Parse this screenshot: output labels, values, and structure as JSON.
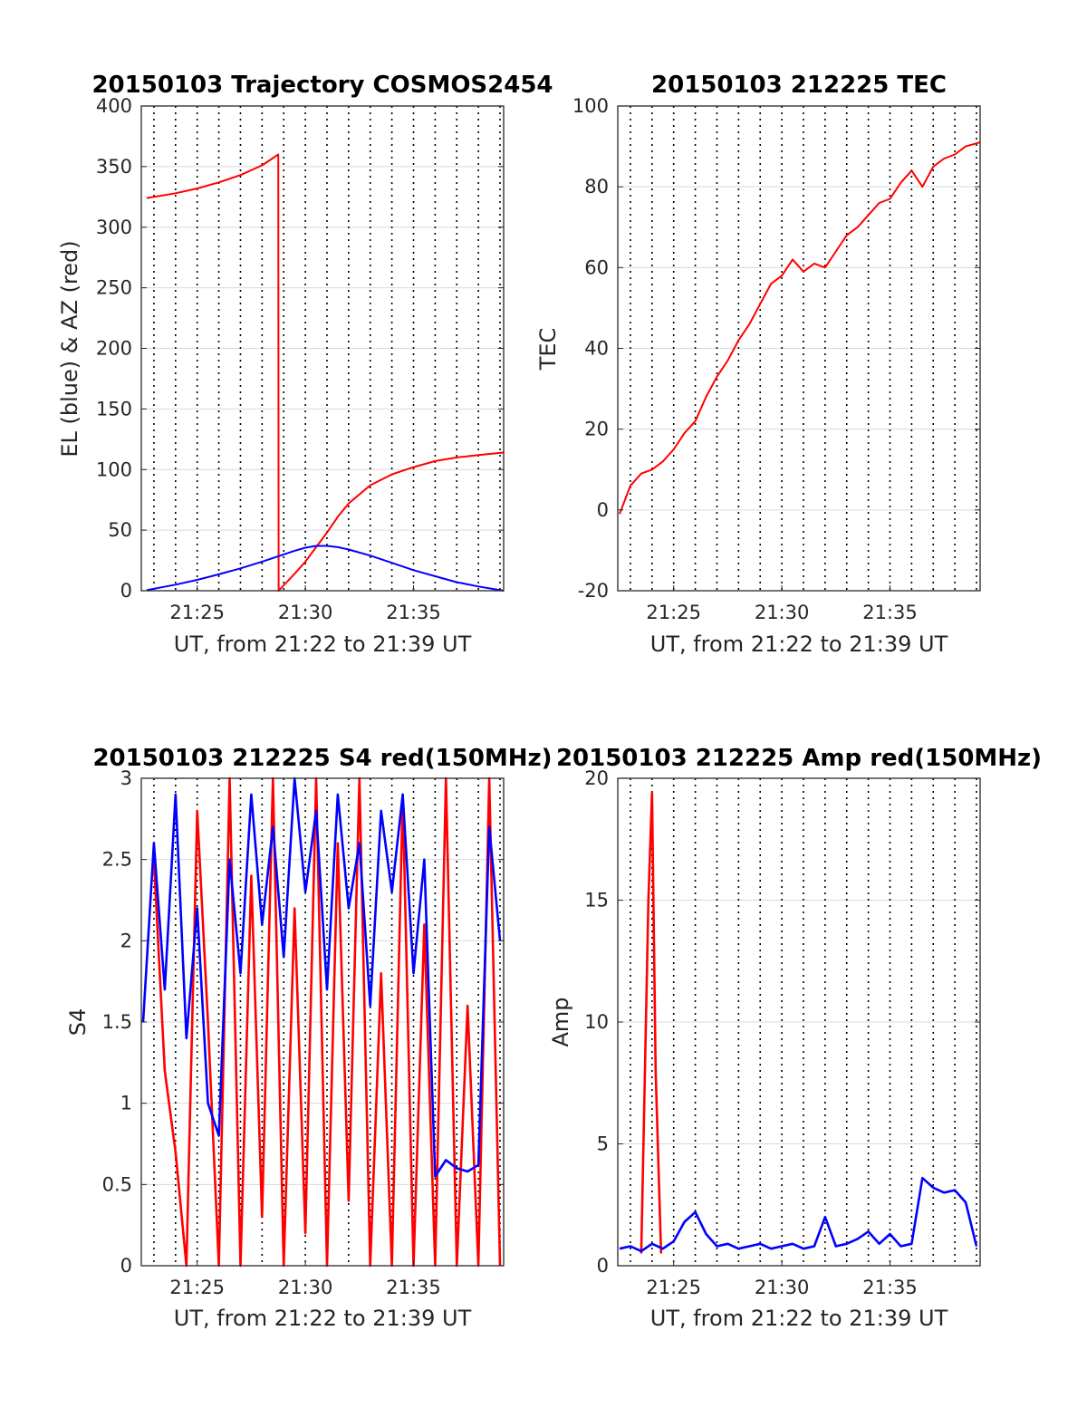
{
  "colors": {
    "red": "#ff0000",
    "blue": "#0000ff",
    "grid": "#d9d9d9",
    "axis": "#262626"
  },
  "chart_data": [
    {
      "type": "line",
      "title": "20150103 Trajectory COSMOS2454",
      "xlabel": "UT, from 21:22 to 21:39 UT",
      "ylabel": "EL (blue) & AZ (red)",
      "xlim": [
        "21:22:25",
        "21:39:10"
      ],
      "ylim": [
        0,
        400
      ],
      "xticks": [
        "21:25",
        "21:30",
        "21:35"
      ],
      "yticks": [
        0,
        50,
        100,
        150,
        200,
        250,
        300,
        350,
        400
      ],
      "grid": "on",
      "series": [
        {
          "color": "red",
          "x": [
            "21:22:40",
            "21:24:00",
            "21:25:00",
            "21:26:00",
            "21:27:00",
            "21:28:00",
            "21:28:45",
            "21:28:46",
            "21:29:30",
            "21:30:00",
            "21:30:30",
            "21:31:00",
            "21:31:30",
            "21:32:00",
            "21:33:00",
            "21:34:00",
            "21:35:00",
            "21:36:00",
            "21:37:00",
            "21:38:00",
            "21:39:10"
          ],
          "y": [
            324,
            328,
            332,
            337,
            343,
            351,
            360,
            0,
            14,
            24,
            36,
            48,
            61,
            72,
            87,
            96,
            102,
            107,
            110,
            112,
            114
          ]
        },
        {
          "color": "blue",
          "x": [
            "21:22:40",
            "21:24:00",
            "21:25:00",
            "21:26:00",
            "21:27:00",
            "21:28:00",
            "21:29:00",
            "21:29:30",
            "21:30:00",
            "21:30:30",
            "21:31:00",
            "21:31:30",
            "21:32:00",
            "21:33:00",
            "21:34:00",
            "21:35:00",
            "21:36:00",
            "21:37:00",
            "21:38:00",
            "21:39:10"
          ],
          "y": [
            0.5,
            5,
            9,
            13.5,
            18.5,
            24,
            30,
            33,
            35.5,
            37,
            37,
            36,
            34,
            29,
            23,
            17,
            12,
            7,
            3.5,
            0
          ]
        }
      ]
    },
    {
      "type": "line",
      "title": "20150103 212225 TEC",
      "xlabel": "UT, from 21:22 to 21:39 UT",
      "ylabel": "TEC",
      "xlim": [
        "21:22:25",
        "21:39:10"
      ],
      "ylim": [
        -20,
        100
      ],
      "xticks": [
        "21:25",
        "21:30",
        "21:35"
      ],
      "yticks": [
        -20,
        0,
        20,
        40,
        60,
        80,
        100
      ],
      "grid": "on",
      "series": [
        {
          "color": "red",
          "x": [
            "21:22:30",
            "21:23:00",
            "21:23:30",
            "21:24:00",
            "21:24:30",
            "21:25:00",
            "21:25:30",
            "21:26:00",
            "21:26:30",
            "21:27:00",
            "21:27:30",
            "21:28:00",
            "21:28:30",
            "21:29:00",
            "21:29:30",
            "21:30:00",
            "21:30:30",
            "21:31:00",
            "21:31:30",
            "21:32:00",
            "21:32:30",
            "21:33:00",
            "21:33:30",
            "21:34:00",
            "21:34:30",
            "21:35:00",
            "21:35:30",
            "21:36:00",
            "21:36:30",
            "21:37:00",
            "21:37:30",
            "21:38:00",
            "21:38:30",
            "21:39:10"
          ],
          "y": [
            -1,
            6,
            9,
            10,
            12,
            15,
            19,
            22,
            28,
            33,
            37,
            42,
            46,
            51,
            56,
            58,
            62,
            59,
            61,
            60,
            64,
            68,
            70,
            73,
            76,
            77,
            81,
            84,
            80,
            85,
            87,
            88,
            90,
            91
          ]
        }
      ]
    },
    {
      "type": "line",
      "title": "20150103 212225 S4 red(150MHz)",
      "xlabel": "UT, from 21:22 to 21:39 UT",
      "ylabel": "S4",
      "xlim": [
        "21:22:25",
        "21:39:10"
      ],
      "ylim": [
        0,
        3
      ],
      "xticks": [
        "21:25",
        "21:30",
        "21:35"
      ],
      "yticks": [
        0,
        0.5,
        1,
        1.5,
        2,
        2.5,
        3
      ],
      "grid": "on",
      "series": [
        {
          "color": "red",
          "x": [
            "21:23:00",
            "21:23:30",
            "21:24:00",
            "21:24:30",
            "21:25:00",
            "21:25:30",
            "21:26:00",
            "21:26:30",
            "21:27:00",
            "21:27:30",
            "21:28:00",
            "21:28:30",
            "21:29:00",
            "21:29:30",
            "21:30:00",
            "21:30:30",
            "21:31:00",
            "21:31:30",
            "21:32:00",
            "21:32:30",
            "21:33:00",
            "21:33:30",
            "21:34:00",
            "21:34:30",
            "21:35:00",
            "21:35:30",
            "21:36:00",
            "21:36:30",
            "21:37:00",
            "21:37:30",
            "21:38:00",
            "21:38:30",
            "21:39:00"
          ],
          "y": [
            2.5,
            1.2,
            0.7,
            0,
            2.8,
            1.5,
            0,
            3,
            0,
            2.4,
            0.3,
            3,
            0,
            2.2,
            0.2,
            3,
            0,
            2.6,
            0.4,
            3,
            0,
            1.8,
            0,
            2.9,
            0,
            2.1,
            0,
            3,
            0,
            1.6,
            0,
            3,
            0
          ]
        },
        {
          "color": "blue",
          "x": [
            "21:22:30",
            "21:23:00",
            "21:23:30",
            "21:24:00",
            "21:24:30",
            "21:25:00",
            "21:25:30",
            "21:26:00",
            "21:26:30",
            "21:27:00",
            "21:27:30",
            "21:28:00",
            "21:28:30",
            "21:29:00",
            "21:29:30",
            "21:30:00",
            "21:30:30",
            "21:31:00",
            "21:31:30",
            "21:32:00",
            "21:32:30",
            "21:33:00",
            "21:33:30",
            "21:34:00",
            "21:34:30",
            "21:35:00",
            "21:35:30",
            "21:36:00",
            "21:36:30",
            "21:37:00",
            "21:37:30",
            "21:38:00",
            "21:38:30",
            "21:39:00"
          ],
          "y": [
            1.5,
            2.6,
            1.7,
            2.9,
            1.4,
            2.2,
            1.0,
            0.8,
            2.5,
            1.8,
            2.9,
            2.1,
            2.7,
            1.9,
            3,
            2.3,
            2.8,
            1.7,
            2.9,
            2.2,
            2.6,
            1.6,
            2.8,
            2.3,
            2.9,
            1.8,
            2.5,
            0.55,
            0.65,
            0.6,
            0.58,
            0.62,
            2.7,
            2.0
          ]
        }
      ]
    },
    {
      "type": "line",
      "title": "20150103 212225 Amp red(150MHz)",
      "xlabel": "UT, from 21:22 to 21:39 UT",
      "ylabel": "Amp",
      "xlim": [
        "21:22:25",
        "21:39:10"
      ],
      "ylim": [
        0,
        20
      ],
      "xticks": [
        "21:25",
        "21:30",
        "21:35"
      ],
      "yticks": [
        0,
        5,
        10,
        15,
        20
      ],
      "grid": "on",
      "series": [
        {
          "color": "red",
          "x": [
            "21:23:30",
            "21:23:50",
            "21:24:00",
            "21:24:10",
            "21:24:25"
          ],
          "y": [
            0.5,
            15,
            19.4,
            8,
            0.5
          ]
        },
        {
          "color": "blue",
          "x": [
            "21:22:30",
            "21:23:00",
            "21:23:30",
            "21:24:00",
            "21:24:30",
            "21:25:00",
            "21:25:30",
            "21:26:00",
            "21:26:30",
            "21:27:00",
            "21:27:30",
            "21:28:00",
            "21:28:30",
            "21:29:00",
            "21:29:30",
            "21:30:00",
            "21:30:30",
            "21:31:00",
            "21:31:30",
            "21:32:00",
            "21:32:30",
            "21:33:00",
            "21:33:30",
            "21:34:00",
            "21:34:30",
            "21:35:00",
            "21:35:30",
            "21:36:00",
            "21:36:30",
            "21:37:00",
            "21:37:30",
            "21:38:00",
            "21:38:30",
            "21:39:00"
          ],
          "y": [
            0.7,
            0.8,
            0.6,
            0.9,
            0.7,
            1.0,
            1.8,
            2.2,
            1.3,
            0.8,
            0.9,
            0.7,
            0.8,
            0.9,
            0.7,
            0.8,
            0.9,
            0.7,
            0.8,
            2.0,
            0.8,
            0.9,
            1.1,
            1.4,
            0.9,
            1.3,
            0.8,
            0.9,
            3.6,
            3.2,
            3.0,
            3.1,
            2.6,
            0.8
          ]
        }
      ]
    }
  ]
}
